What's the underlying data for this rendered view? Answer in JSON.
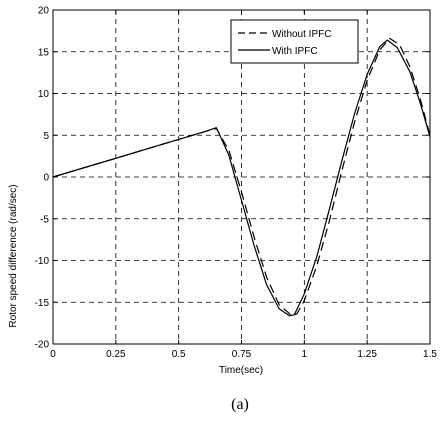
{
  "chart_data": {
    "type": "line",
    "xlabel": "Time(sec)",
    "ylabel": "Rotor speed difference (rad/sec)",
    "xlim": [
      0,
      1.5
    ],
    "ylim": [
      -20,
      20
    ],
    "x_ticks": [
      0,
      0.25,
      0.5,
      0.75,
      1,
      1.25,
      1.5
    ],
    "x_tick_labels": [
      "0",
      "0.25",
      "0.5",
      "0.75",
      "1",
      "1.25",
      "1.5"
    ],
    "y_ticks": [
      -20,
      -15,
      -10,
      -5,
      0,
      5,
      10,
      15,
      20
    ],
    "y_tick_labels": [
      "-20",
      "-15",
      "-10",
      "-5",
      "0",
      "5",
      "10",
      "15",
      "20"
    ],
    "grid": true,
    "legend_position": "top-right",
    "series": [
      {
        "name": "Without IPFC",
        "style": "dashed",
        "color": "#000000",
        "x": [
          0,
          0.1,
          0.2,
          0.3,
          0.4,
          0.5,
          0.6,
          0.65,
          0.7,
          0.75,
          0.8,
          0.85,
          0.9,
          0.95,
          0.97,
          1.0,
          1.05,
          1.1,
          1.15,
          1.2,
          1.25,
          1.3,
          1.34,
          1.38,
          1.42,
          1.46,
          1.5
        ],
        "y": [
          0,
          0.9,
          1.8,
          2.7,
          3.6,
          4.5,
          5.4,
          5.8,
          3.2,
          -1.8,
          -7.2,
          -12.0,
          -15.3,
          -16.6,
          -16.4,
          -14.8,
          -10.6,
          -5.2,
          0.8,
          6.6,
          11.6,
          15.2,
          16.6,
          15.8,
          13.2,
          9.5,
          5.0
        ]
      },
      {
        "name": "With IPFC",
        "style": "solid",
        "color": "#000000",
        "x": [
          0,
          0.1,
          0.2,
          0.3,
          0.4,
          0.5,
          0.6,
          0.65,
          0.7,
          0.75,
          0.8,
          0.85,
          0.9,
          0.94,
          0.96,
          1.0,
          1.05,
          1.1,
          1.15,
          1.2,
          1.25,
          1.3,
          1.33,
          1.37,
          1.42,
          1.46,
          1.5
        ],
        "y": [
          0,
          0.9,
          1.8,
          2.7,
          3.6,
          4.5,
          5.4,
          5.9,
          2.6,
          -2.8,
          -8.2,
          -12.9,
          -15.8,
          -16.6,
          -16.5,
          -14.0,
          -9.5,
          -3.8,
          2.0,
          7.6,
          12.3,
          15.6,
          16.4,
          15.5,
          12.6,
          9.0,
          4.8
        ]
      }
    ],
    "caption": "(a)"
  }
}
